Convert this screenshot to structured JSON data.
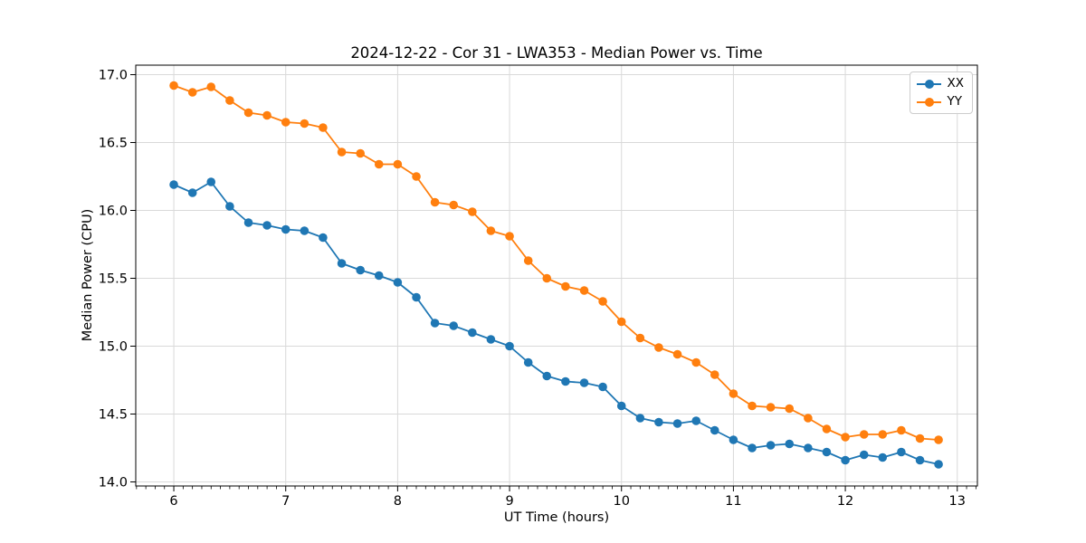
{
  "chart_data": {
    "type": "line",
    "title": "2024-12-22 - Cor 31 - LWA353 - Median Power vs. Time",
    "xlabel": "UT Time (hours)",
    "ylabel": "Median Power (CPU)",
    "x": [
      6.0,
      6.167,
      6.333,
      6.5,
      6.667,
      6.833,
      7.0,
      7.167,
      7.333,
      7.5,
      7.667,
      7.833,
      8.0,
      8.167,
      8.333,
      8.5,
      8.667,
      8.833,
      9.0,
      9.167,
      9.333,
      9.5,
      9.667,
      9.833,
      10.0,
      10.167,
      10.333,
      10.5,
      10.667,
      10.833,
      11.0,
      11.167,
      11.333,
      11.5,
      11.667,
      11.833,
      12.0,
      12.167,
      12.333,
      12.5,
      12.667,
      12.833
    ],
    "series": [
      {
        "name": "XX",
        "color": "#1f77b4",
        "marker": "o",
        "values": [
          16.19,
          16.13,
          16.21,
          16.03,
          15.91,
          15.89,
          15.86,
          15.85,
          15.8,
          15.61,
          15.56,
          15.52,
          15.47,
          15.36,
          15.17,
          15.15,
          15.1,
          15.05,
          15.0,
          14.88,
          14.78,
          14.74,
          14.73,
          14.7,
          14.56,
          14.47,
          14.44,
          14.43,
          14.45,
          14.38,
          14.31,
          14.25,
          14.27,
          14.28,
          14.25,
          14.22,
          14.16,
          14.2,
          14.18,
          14.22,
          14.16,
          14.13
        ]
      },
      {
        "name": "YY",
        "color": "#ff7f0e",
        "marker": "o",
        "values": [
          16.92,
          16.87,
          16.91,
          16.81,
          16.72,
          16.7,
          16.65,
          16.64,
          16.61,
          16.43,
          16.42,
          16.34,
          16.34,
          16.25,
          16.06,
          16.04,
          15.99,
          15.85,
          15.81,
          15.63,
          15.5,
          15.44,
          15.41,
          15.33,
          15.18,
          15.06,
          14.99,
          14.94,
          14.88,
          14.79,
          14.65,
          14.56,
          14.55,
          14.54,
          14.47,
          14.39,
          14.33,
          14.35,
          14.35,
          14.38,
          14.32,
          14.31
        ]
      }
    ],
    "xlim": [
      5.66,
      13.18
    ],
    "ylim": [
      13.97,
      17.07
    ],
    "x_ticks": [
      6,
      7,
      8,
      9,
      10,
      11,
      12,
      13
    ],
    "x_tick_labels": [
      "6",
      "7",
      "8",
      "9",
      "10",
      "11",
      "12",
      "13"
    ],
    "x_minor_tick_interval_hours": 0.0833,
    "y_ticks": [
      14.0,
      14.5,
      15.0,
      15.5,
      16.0,
      16.5,
      17.0
    ],
    "y_tick_labels": [
      "14.0",
      "14.5",
      "15.0",
      "15.5",
      "16.0",
      "16.5",
      "17.0"
    ],
    "grid": true,
    "legend": {
      "position": "upper right",
      "entries": [
        "XX",
        "YY"
      ]
    },
    "styles": {
      "background": "#ffffff",
      "grid_color": "#d9d9d9",
      "axis_color": "#000000",
      "text_color": "#000000"
    }
  }
}
